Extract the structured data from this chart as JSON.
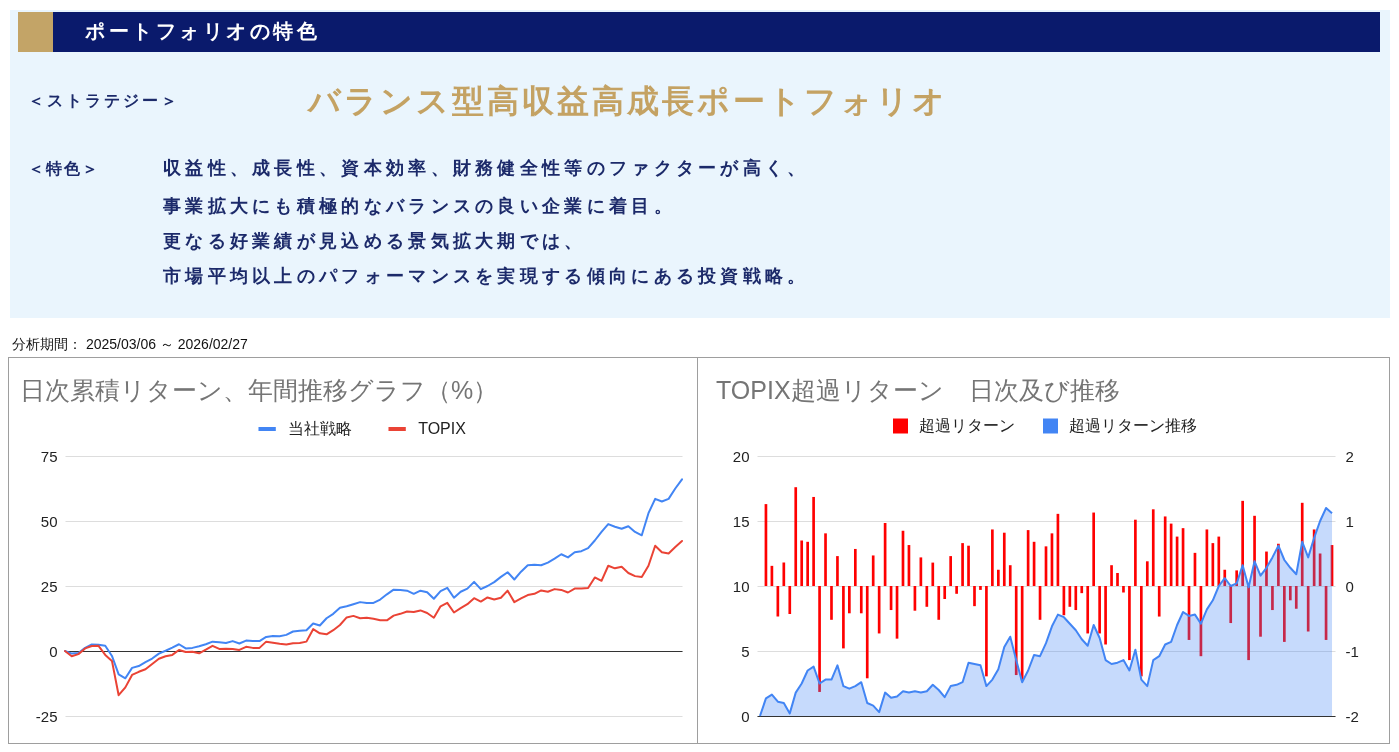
{
  "chart_data": [
    {
      "type": "other",
      "title": "ポートフォリオの特色",
      "annotations": [
        "＜ストラテジー＞",
        "バランス型高収益高成長ポートフォリオ",
        "＜特色＞",
        "収益性、成長性、資本効率、財務健全性等のファクターが高く、",
        "事業拡大にも積極的なバランスの良い企業に着目。",
        "更なる好業績が見込める景気拡大期では、",
        "市場平均以上のパフォーマンスを実現する傾向にある投資戦略。",
        "分析期間： 2025/03/06 ～ 2026/02/27"
      ]
    },
    {
      "type": "line",
      "title": "日次累積リターン、年間推移グラフ（%）",
      "categories": [
        null,
        null,
        null,
        null,
        null,
        null,
        null,
        null,
        null,
        null,
        null,
        null,
        null,
        null,
        null,
        null,
        null,
        null,
        null,
        null,
        null,
        null,
        null,
        null,
        null,
        null,
        null,
        null,
        null,
        null,
        null,
        null,
        null,
        null,
        null,
        null,
        null,
        null,
        null,
        null,
        null,
        null,
        null,
        null,
        null,
        null,
        null,
        null,
        null,
        null,
        null,
        null,
        null,
        null,
        null,
        null,
        null,
        null,
        null,
        null,
        null,
        null,
        null,
        null,
        null,
        null,
        null,
        null,
        null,
        null,
        null,
        null,
        null,
        null,
        null,
        null,
        null,
        null,
        null,
        null,
        null,
        null,
        null,
        null,
        null,
        null,
        null,
        null,
        null,
        null,
        null,
        null,
        null
      ],
      "series": [
        {
          "name": "当社戦略",
          "color": "#4285f4",
          "values": [
            0,
            -1.0,
            -0.8,
            1.2,
            2.5,
            2.4,
            2.0,
            -1.9,
            -9.0,
            -10.5,
            -6.5,
            -5.8,
            -4.3,
            -2.9,
            -1.0,
            0.1,
            1.3,
            2.6,
            1.0,
            1.2,
            1.8,
            2.6,
            3.6,
            3.4,
            3.1,
            3.8,
            2.9,
            4.0,
            3.8,
            3.8,
            5.4,
            5.8,
            5.7,
            6.2,
            7.5,
            7.8,
            8.0,
            10.6,
            9.8,
            12.6,
            14.3,
            16.6,
            17.2,
            18.0,
            18.8,
            18.5,
            18.5,
            19.8,
            21.8,
            23.6,
            23.5,
            23.2,
            22.0,
            23.2,
            22.6,
            20.1,
            23.0,
            24.3,
            20.5,
            22.8,
            24.0,
            26.6,
            23.8,
            25.0,
            26.5,
            28.5,
            30.3,
            27.5,
            30.5,
            33.0,
            33.2,
            33.0,
            34.0,
            35.5,
            37.2,
            36.0,
            38.0,
            38.4,
            39.6,
            42.5,
            45.8,
            48.8,
            47.8,
            47.0,
            48.0,
            45.8,
            44.5,
            53.0,
            58.5,
            57.5,
            58.5,
            62.5,
            66.0
          ]
        },
        {
          "name": "TOPIX",
          "color": "#ea4335",
          "values": [
            0,
            -2.0,
            -1.2,
            1.0,
            1.9,
            2.0,
            -1.5,
            -3.8,
            -17.0,
            -14.0,
            -9.2,
            -8.0,
            -7.0,
            -5.0,
            -3.0,
            -2.0,
            -1.5,
            0.4,
            -0.4,
            -0.3,
            -0.9,
            0.5,
            2.0,
            0.8,
            0.9,
            0.8,
            0.4,
            1.6,
            1.2,
            1.2,
            3.6,
            3.2,
            2.8,
            2.5,
            3.0,
            3.1,
            3.6,
            8.4,
            6.8,
            6.4,
            8.0,
            10.0,
            12.9,
            13.5,
            12.6,
            12.8,
            12.4,
            11.8,
            11.8,
            13.6,
            14.3,
            15.2,
            15.0,
            15.6,
            14.6,
            12.8,
            17.2,
            18.5,
            14.8,
            16.5,
            18.0,
            20.3,
            19.0,
            20.6,
            19.8,
            20.5,
            23.2,
            18.8,
            20.2,
            21.5,
            22.0,
            23.3,
            22.8,
            23.8,
            23.5,
            22.5,
            24.0,
            24.0,
            24.2,
            28.3,
            27.0,
            32.8,
            31.8,
            32.4,
            30.0,
            28.8,
            28.5,
            32.8,
            40.5,
            38.0,
            37.5,
            40.0,
            42.3
          ]
        }
      ],
      "ylim": [
        -25,
        75
      ],
      "yticks": [
        -25,
        0,
        25,
        50,
        75
      ],
      "grid": "y",
      "legend": "top"
    },
    {
      "type": "bar",
      "title": "TOPIX超過リターン　日次及び推移",
      "categories": [
        null,
        null,
        null,
        null,
        null,
        null,
        null,
        null,
        null,
        null,
        null,
        null,
        null,
        null,
        null,
        null,
        null,
        null,
        null,
        null,
        null,
        null,
        null,
        null,
        null,
        null,
        null,
        null,
        null,
        null,
        null,
        null,
        null,
        null,
        null,
        null,
        null,
        null,
        null,
        null,
        null,
        null,
        null,
        null,
        null,
        null,
        null,
        null,
        null,
        null,
        null,
        null,
        null,
        null,
        null,
        null,
        null,
        null,
        null,
        null,
        null,
        null,
        null,
        null,
        null,
        null,
        null,
        null,
        null,
        null,
        null,
        null,
        null,
        null,
        null,
        null,
        null,
        null,
        null,
        null,
        null,
        null,
        null,
        null,
        null,
        null,
        null,
        null,
        null,
        null,
        null,
        null,
        null,
        null,
        null,
        null,
        null
      ],
      "series": [
        {
          "name": "超過リターン",
          "type": "bar",
          "axis": "y2",
          "color": "#ff0000",
          "values": [
            null,
            1.26,
            0.31,
            -0.47,
            0.36,
            -0.43,
            1.52,
            0.7,
            0.68,
            1.37,
            -1.63,
            0.81,
            -0.52,
            0.46,
            -0.96,
            -0.42,
            0.57,
            -0.42,
            -1.42,
            0.47,
            -0.73,
            0.97,
            -0.37,
            -0.81,
            0.85,
            0.63,
            -0.38,
            0.44,
            -0.32,
            0.36,
            -0.52,
            -0.2,
            0.46,
            -0.12,
            0.66,
            0.62,
            -0.31,
            -0.06,
            -1.39,
            0.87,
            0.25,
            0.82,
            0.32,
            -1.37,
            -1.45,
            0.86,
            0.68,
            -0.52,
            0.61,
            0.81,
            1.11,
            -0.45,
            -0.32,
            -0.37,
            -0.11,
            -0.73,
            1.13,
            -0.73,
            -0.9,
            0.32,
            0.2,
            -0.1,
            -1.14,
            1.02,
            -1.39,
            0.38,
            1.18,
            -0.47,
            1.07,
            0.96,
            0.76,
            0.89,
            -0.83,
            0.51,
            -1.08,
            0.87,
            0.66,
            0.76,
            0.25,
            -0.57,
            0.24,
            1.31,
            -1.14,
            1.08,
            -0.78,
            0.53,
            -0.37,
            0.65,
            -0.86,
            -0.22,
            -0.35,
            1.28,
            -0.7,
            0.87,
            0.5,
            -0.83,
            0.63
          ]
        },
        {
          "name": "超過リターン推移",
          "type": "area",
          "color": "#4285f4",
          "values": [
            0,
            1.36,
            1.65,
            1.1,
            1.0,
            0.2,
            1.8,
            2.5,
            3.5,
            3.8,
            2.5,
            2.8,
            2.8,
            3.9,
            2.3,
            2.1,
            2.3,
            2.6,
            1.0,
            0.8,
            0.3,
            1.8,
            1.4,
            1.5,
            1.9,
            1.8,
            1.9,
            1.8,
            1.9,
            2.4,
            2.0,
            1.45,
            2.3,
            2.4,
            2.6,
            4.1,
            4.0,
            3.9,
            2.3,
            2.8,
            3.6,
            5.3,
            6.1,
            4.3,
            2.6,
            3.5,
            4.7,
            4.6,
            5.6,
            6.9,
            7.8,
            7.6,
            7.1,
            6.6,
            5.9,
            5.4,
            7.0,
            6.0,
            4.3,
            4.0,
            4.1,
            4.3,
            3.5,
            5.1,
            2.8,
            2.3,
            4.3,
            4.6,
            5.5,
            5.7,
            7.0,
            8.0,
            7.7,
            7.8,
            7.1,
            8.2,
            8.9,
            10.0,
            10.6,
            10.0,
            10.2,
            11.6,
            9.9,
            11.9,
            10.8,
            11.4,
            12.2,
            13.1,
            12.0,
            11.4,
            10.9,
            13.4,
            12.2,
            13.7,
            15.0,
            16.0,
            15.6
          ]
        }
      ],
      "ylim": [
        0,
        20
      ],
      "yticks": [
        0,
        5,
        10,
        15,
        20
      ],
      "y2lim": [
        -2,
        2
      ],
      "y2ticks": [
        -2,
        -1,
        0,
        1,
        2
      ],
      "grid": "y",
      "legend": "top"
    }
  ]
}
